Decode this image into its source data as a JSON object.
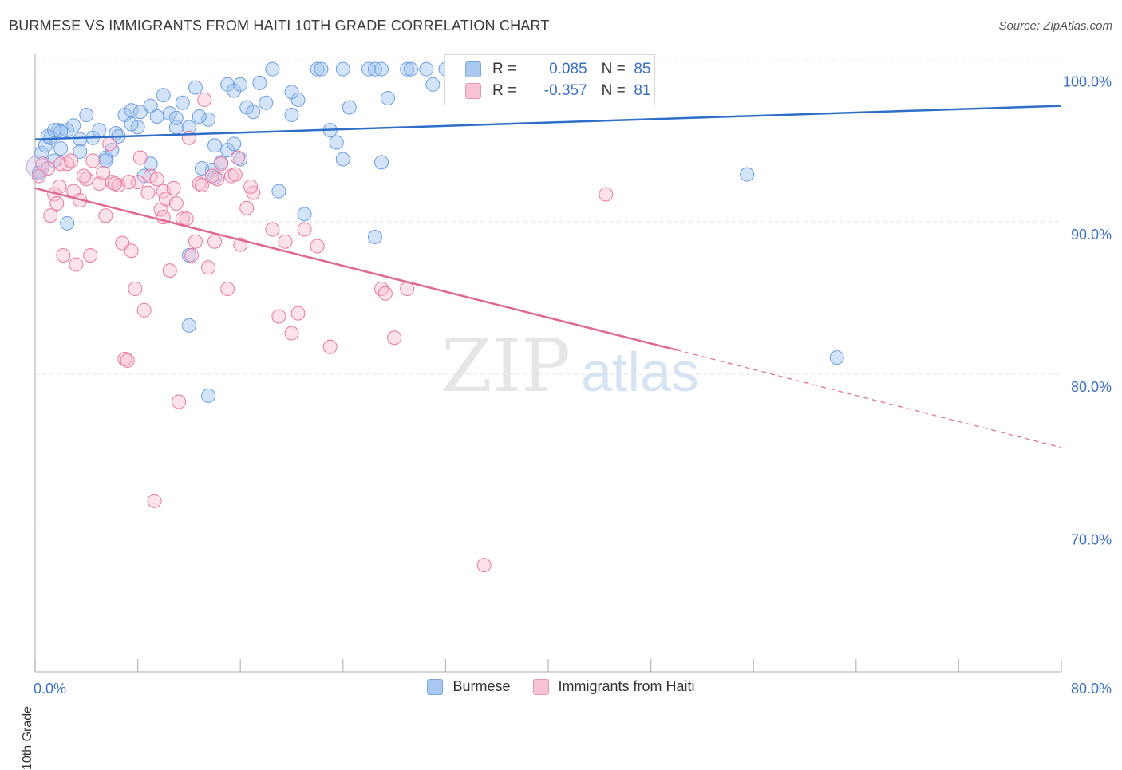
{
  "title": "BURMESE VS IMMIGRANTS FROM HAITI 10TH GRADE CORRELATION CHART",
  "source": "Source: ZipAtlas.com",
  "watermark": {
    "zip": "ZIP",
    "atlas": "atlas"
  },
  "legend": {
    "r_label": "R =",
    "n_label": "N =",
    "rows": [
      {
        "name": "Burmese",
        "r": "0.085",
        "n": "85",
        "color": "#a9c8f0",
        "border": "#7aa6e0"
      },
      {
        "name": "Immigrants from Haiti",
        "r": "-0.357",
        "n": "81",
        "color": "#f8c3d4",
        "border": "#ec95b2"
      }
    ]
  },
  "chart_data": {
    "type": "scatter",
    "title": "BURMESE VS IMMIGRANTS FROM HAITI 10TH GRADE CORRELATION CHART",
    "xlabel": "",
    "ylabel": "10th Grade",
    "xlim": [
      0,
      80
    ],
    "ylim": [
      60.5,
      101.5
    ],
    "x_tick_labels": [
      "0.0%",
      "80.0%"
    ],
    "y_ticks": [
      70,
      80,
      90,
      100
    ],
    "y_tick_labels": [
      "70.0%",
      "80.0%",
      "90.0%",
      "100.0%"
    ],
    "grid": true,
    "series": [
      {
        "name": "Burmese",
        "color": "#6b9de0",
        "fill": "rgba(160,195,240,0.45)",
        "trend": {
          "x0": 0,
          "y0": 95.4,
          "x1": 80,
          "y1": 97.6
        },
        "points": [
          [
            0.3,
            93.2
          ],
          [
            0.5,
            94.5
          ],
          [
            0.8,
            95
          ],
          [
            1.2,
            95.5
          ],
          [
            1.5,
            94
          ],
          [
            1.8,
            96
          ],
          [
            2,
            94.8
          ],
          [
            2.5,
            96
          ],
          [
            3,
            96.3
          ],
          [
            3.5,
            95.4
          ],
          [
            4,
            97
          ],
          [
            4.5,
            95.5
          ],
          [
            5,
            96
          ],
          [
            5.5,
            94.2
          ],
          [
            6,
            94.7
          ],
          [
            6.3,
            95.8
          ],
          [
            7,
            97
          ],
          [
            7.5,
            97.3
          ],
          [
            8,
            96.2
          ],
          [
            8.2,
            97.2
          ],
          [
            9,
            97.6
          ],
          [
            9.5,
            96.9
          ],
          [
            10,
            98.3
          ],
          [
            10.5,
            97.1
          ],
          [
            11,
            96.2
          ],
          [
            11.5,
            97.8
          ],
          [
            12,
            96.2
          ],
          [
            12.5,
            98.8
          ],
          [
            13.5,
            96.7
          ],
          [
            14,
            95
          ],
          [
            15,
            99
          ],
          [
            15.5,
            98.6
          ],
          [
            16,
            99
          ],
          [
            16.5,
            97.5
          ],
          [
            17,
            97.2
          ],
          [
            17.5,
            99.1
          ],
          [
            18,
            97.8
          ],
          [
            18.5,
            100
          ],
          [
            20,
            97
          ],
          [
            20.5,
            98
          ],
          [
            22,
            100
          ],
          [
            22.3,
            100
          ],
          [
            23,
            96
          ],
          [
            23.5,
            95.2
          ],
          [
            24,
            94.1
          ],
          [
            24.5,
            97.5
          ],
          [
            26,
            100
          ],
          [
            26.5,
            100
          ],
          [
            27,
            100
          ],
          [
            27.5,
            98.1
          ],
          [
            29,
            100
          ],
          [
            29.3,
            100
          ],
          [
            30.5,
            100
          ],
          [
            31,
            99
          ],
          [
            32,
            100
          ],
          [
            34,
            100
          ],
          [
            2.5,
            89.9
          ],
          [
            5.5,
            94
          ],
          [
            9,
            93.8
          ],
          [
            12,
            87.8
          ],
          [
            12,
            83.2
          ],
          [
            13.5,
            78.6
          ],
          [
            13.8,
            93.4
          ],
          [
            14,
            92.9
          ],
          [
            14.5,
            93.9
          ],
          [
            15,
            94.7
          ],
          [
            15.5,
            95.1
          ],
          [
            16,
            94.1
          ],
          [
            19,
            92
          ],
          [
            20,
            98.5
          ],
          [
            21,
            90.5
          ],
          [
            26.5,
            89
          ],
          [
            27,
            93.9
          ],
          [
            1,
            95.6
          ],
          [
            2,
            95.9
          ],
          [
            3.5,
            94.6
          ],
          [
            6.5,
            95.6
          ],
          [
            8.5,
            93
          ],
          [
            11,
            96.8
          ],
          [
            24,
            100
          ],
          [
            13,
            93.5
          ],
          [
            55.5,
            93.1
          ],
          [
            62.5,
            81.1
          ],
          [
            1.5,
            96
          ],
          [
            7.5,
            96.4
          ],
          [
            12.8,
            96.9
          ]
        ]
      },
      {
        "name": "Immigrants from Haiti",
        "color": "#e8779f",
        "fill": "rgba(248,190,210,0.45)",
        "trend": {
          "x0": 0,
          "y0": 92.2,
          "x1": 50,
          "y1": 81.6,
          "dash_x1": 80,
          "dash_y1": 75.2
        },
        "points": [
          [
            0.3,
            93
          ],
          [
            0.6,
            93.8
          ],
          [
            1,
            93.5
          ],
          [
            1.2,
            90.4
          ],
          [
            1.5,
            91.8
          ],
          [
            1.7,
            91.2
          ],
          [
            2,
            93.8
          ],
          [
            2.2,
            87.8
          ],
          [
            2.5,
            93.8
          ],
          [
            3,
            92
          ],
          [
            3.2,
            87.2
          ],
          [
            3.5,
            91.4
          ],
          [
            4,
            92.8
          ],
          [
            4.5,
            94
          ],
          [
            5,
            92.5
          ],
          [
            5.3,
            93.2
          ],
          [
            5.5,
            90.4
          ],
          [
            5.8,
            95.1
          ],
          [
            6,
            92.6
          ],
          [
            6.5,
            92.4
          ],
          [
            6.8,
            88.6
          ],
          [
            7,
            81
          ],
          [
            7.2,
            80.9
          ],
          [
            7.5,
            88.1
          ],
          [
            7.8,
            85.6
          ],
          [
            8,
            92.6
          ],
          [
            8.2,
            94.2
          ],
          [
            8.5,
            84.2
          ],
          [
            8.8,
            91.9
          ],
          [
            9,
            93
          ],
          [
            9.3,
            71.7
          ],
          [
            9.5,
            92.8
          ],
          [
            9.8,
            90.8
          ],
          [
            10,
            92
          ],
          [
            10.2,
            91.5
          ],
          [
            10.5,
            86.8
          ],
          [
            10.8,
            92.2
          ],
          [
            11,
            91.2
          ],
          [
            11.2,
            78.2
          ],
          [
            11.5,
            90.2
          ],
          [
            12,
            95.5
          ],
          [
            12.2,
            87.8
          ],
          [
            12.5,
            88.7
          ],
          [
            12.8,
            92.5
          ],
          [
            13,
            92.4
          ],
          [
            13.2,
            98
          ],
          [
            13.5,
            87
          ],
          [
            14,
            88.7
          ],
          [
            14.2,
            92.8
          ],
          [
            14.5,
            93.8
          ],
          [
            15,
            85.6
          ],
          [
            15.3,
            93
          ],
          [
            15.8,
            94.2
          ],
          [
            16,
            88.5
          ],
          [
            16.5,
            90.9
          ],
          [
            17,
            91.9
          ],
          [
            18.5,
            89.5
          ],
          [
            19,
            83.8
          ],
          [
            19.5,
            88.7
          ],
          [
            20,
            82.7
          ],
          [
            20.5,
            84
          ],
          [
            21,
            89.5
          ],
          [
            22,
            88.4
          ],
          [
            23,
            81.8
          ],
          [
            27,
            85.6
          ],
          [
            27.3,
            85.3
          ],
          [
            28,
            82.4
          ],
          [
            29,
            85.6
          ],
          [
            35,
            67.5
          ],
          [
            44.5,
            91.8
          ],
          [
            2.8,
            94
          ],
          [
            3.8,
            93
          ],
          [
            4.3,
            87.8
          ],
          [
            6.2,
            92.5
          ],
          [
            7.3,
            92.6
          ],
          [
            10,
            90.3
          ],
          [
            11.8,
            90.2
          ],
          [
            13.8,
            93
          ],
          [
            15.6,
            93.1
          ],
          [
            16.8,
            92.3
          ],
          [
            1.9,
            92.3
          ]
        ]
      }
    ]
  },
  "bottom_legend": [
    {
      "name": "Burmese",
      "color": "#a9c8f0",
      "border": "#7aa6e0"
    },
    {
      "name": "Immigrants from Haiti",
      "color": "#f8c3d4",
      "border": "#ec95b2"
    }
  ]
}
